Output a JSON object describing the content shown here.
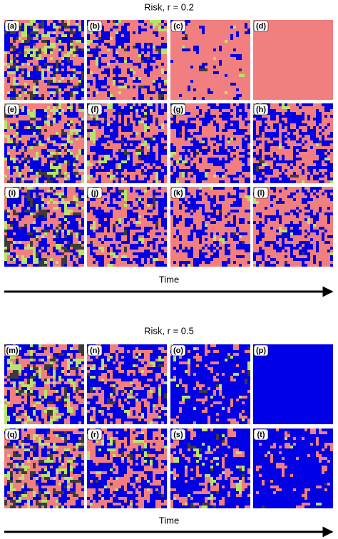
{
  "sections": [
    {
      "title": "Risk, r = 0.2",
      "panels": [
        "(a)",
        "(b)",
        "(c)",
        "(d)",
        "(e)",
        "(f)",
        "(g)",
        "(h)",
        "(i)",
        "(j)",
        "(k)",
        "(l)"
      ],
      "axis_label": "Time"
    },
    {
      "title": "Risk, r = 0.5",
      "panels": [
        "(m)",
        "(n)",
        "(o)",
        "(p)",
        "(q)",
        "(r)",
        "(s)",
        "(t)"
      ],
      "axis_label": "Time"
    }
  ]
}
